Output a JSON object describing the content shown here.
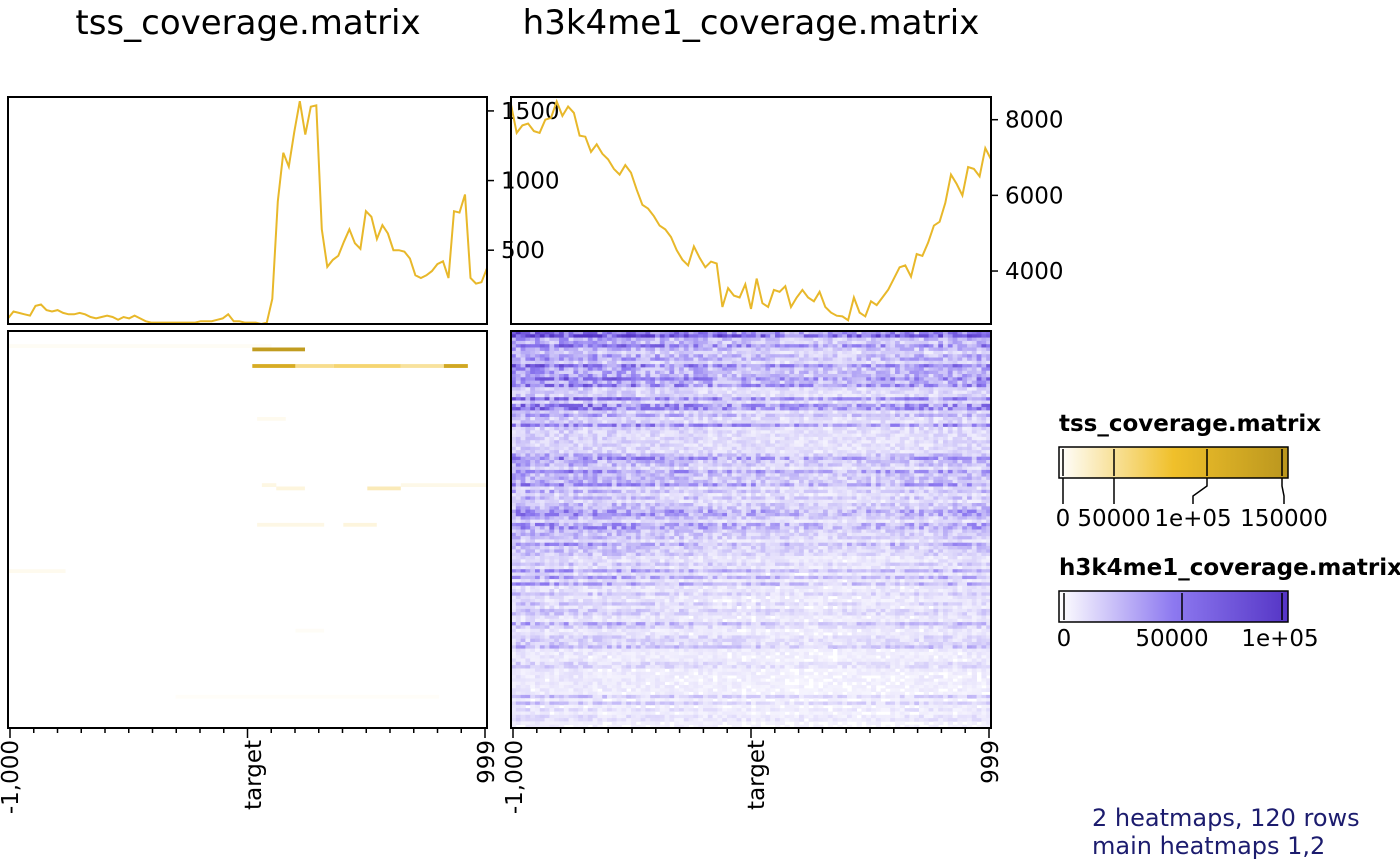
{
  "chart_data": [
    {
      "type": "heatmap",
      "title": "tss_coverage.matrix",
      "rows": 120,
      "x_ticks": [
        "-1,000",
        "target",
        "999"
      ],
      "profile": {
        "type": "line",
        "color": "#E8B82A",
        "y_ticks": [
          500,
          1000,
          1500
        ],
        "ylim": [
          -30,
          1600
        ],
        "values": [
          10,
          60,
          50,
          40,
          30,
          100,
          110,
          70,
          60,
          70,
          50,
          40,
          40,
          50,
          40,
          20,
          10,
          20,
          30,
          20,
          0,
          20,
          10,
          30,
          10,
          -10,
          -20,
          -20,
          -20,
          -20,
          -20,
          -20,
          -20,
          -20,
          -20,
          -10,
          -10,
          -10,
          0,
          10,
          40,
          -10,
          -10,
          -20,
          -20,
          -20,
          -30,
          -20,
          150,
          850,
          1200,
          1100,
          1350,
          1570,
          1330,
          1530,
          1540,
          650,
          380,
          430,
          460,
          560,
          650,
          550,
          510,
          780,
          740,
          580,
          680,
          620,
          500,
          500,
          490,
          440,
          320,
          300,
          320,
          350,
          400,
          420,
          300,
          780,
          770,
          900,
          300,
          260,
          270,
          370
        ]
      },
      "color_scale": {
        "stops": [
          "#FFFFFF",
          "#F0C02A",
          "#BA961E"
        ],
        "domain": [
          0,
          75000,
          150000
        ]
      },
      "legend": {
        "title": "tss_coverage.matrix",
        "ticks": [
          "0",
          "50000",
          "1e+05",
          "150000"
        ]
      },
      "bands": [
        {
          "row": 4,
          "x0": 0.0,
          "x1": 0.55,
          "value": 4000
        },
        {
          "row": 5,
          "x0": 0.51,
          "x1": 0.62,
          "value": 140000
        },
        {
          "row": 10,
          "x0": 0.51,
          "x1": 0.6,
          "value": 110000
        },
        {
          "row": 10,
          "x0": 0.6,
          "x1": 0.68,
          "value": 40000
        },
        {
          "row": 10,
          "x0": 0.68,
          "x1": 0.82,
          "value": 50000
        },
        {
          "row": 10,
          "x0": 0.82,
          "x1": 0.96,
          "value": 35000
        },
        {
          "row": 10,
          "x0": 0.91,
          "x1": 0.96,
          "value": 120000
        },
        {
          "row": 26,
          "x0": 0.52,
          "x1": 0.58,
          "value": 6000
        },
        {
          "row": 46,
          "x0": 0.53,
          "x1": 0.56,
          "value": 10000
        },
        {
          "row": 47,
          "x0": 0.56,
          "x1": 0.62,
          "value": 12000
        },
        {
          "row": 47,
          "x0": 0.75,
          "x1": 0.82,
          "value": 25000
        },
        {
          "row": 46,
          "x0": 0.82,
          "x1": 1.0,
          "value": 8000
        },
        {
          "row": 58,
          "x0": 0.52,
          "x1": 0.66,
          "value": 9000
        },
        {
          "row": 58,
          "x0": 0.7,
          "x1": 0.77,
          "value": 12000
        },
        {
          "row": 72,
          "x0": 0.0,
          "x1": 0.12,
          "value": 6000
        },
        {
          "row": 90,
          "x0": 0.6,
          "x1": 0.66,
          "value": 3000
        },
        {
          "row": 110,
          "x0": 0.35,
          "x1": 0.9,
          "value": 2500
        }
      ]
    },
    {
      "type": "heatmap",
      "title": "h3k4me1_coverage.matrix",
      "rows": 120,
      "x_ticks": [
        "-1,000",
        "target",
        "999"
      ],
      "profile": {
        "type": "line",
        "color": "#E8B82A",
        "y_ticks": [
          4000,
          6000,
          8000
        ],
        "ylim": [
          2600,
          8600
        ],
        "values": [
          8400,
          7650,
          7850,
          7900,
          7700,
          7650,
          8000,
          8050,
          8480,
          8100,
          8350,
          8180,
          7580,
          7550,
          7150,
          7350,
          7100,
          6950,
          6700,
          6550,
          6800,
          6600,
          6150,
          5750,
          5650,
          5450,
          5200,
          5100,
          4900,
          4550,
          4300,
          4150,
          4650,
          4350,
          4100,
          4250,
          4200,
          3050,
          3550,
          3350,
          3300,
          3650,
          3000,
          3800,
          3150,
          3050,
          3500,
          3450,
          3600,
          3050,
          3300,
          3500,
          3300,
          3200,
          3450,
          3050,
          2900,
          2820,
          2800,
          2700,
          3300,
          2900,
          2800,
          3200,
          3100,
          3300,
          3500,
          3800,
          4100,
          4150,
          3850,
          4450,
          4400,
          4750,
          5200,
          5300,
          5800,
          6550,
          6300,
          6000,
          6750,
          6700,
          6500,
          7250,
          6950
        ]
      },
      "color_scale": {
        "stops": [
          "#FFFFFF",
          "#8D79F0",
          "#5535C5"
        ],
        "domain": [
          0,
          55000,
          110000
        ]
      },
      "legend": {
        "title": "h3k4me1_coverage.matrix",
        "ticks": [
          "0",
          "50000",
          "1e+05"
        ]
      },
      "ncols": 100
    }
  ],
  "footer": {
    "line1": "2 heatmaps, 120 rows",
    "line2": "main heatmaps 1,2"
  }
}
